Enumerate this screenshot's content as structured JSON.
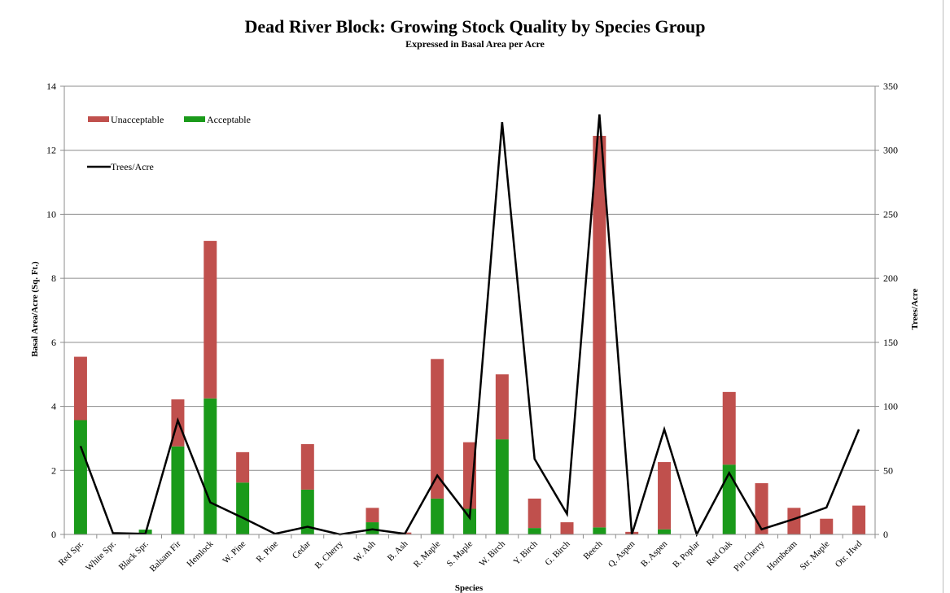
{
  "chart_data": {
    "type": "bar",
    "title": "Dead River Block: Growing Stock Quality by Species Group",
    "subtitle": "Expressed in Basal Area per Acre",
    "xlabel": "Species",
    "ylabel": "Basal Area/Acre (Sq. Ft.)",
    "y2label": "Trees/Acre",
    "ylim": [
      0,
      14
    ],
    "y2lim": [
      0,
      350
    ],
    "yticks": [
      0,
      2,
      4,
      6,
      8,
      10,
      12,
      14
    ],
    "y2ticks": [
      0,
      50,
      100,
      150,
      200,
      250,
      300,
      350
    ],
    "grid": true,
    "legend_position": "top-left",
    "categories": [
      "Red Spr.",
      "White Spr.",
      "Black Spr.",
      "Balsam Fir",
      "Hemlock",
      "W. Pine",
      "R. Pine",
      "Cedar",
      "B. Cherry",
      "W. Ash",
      "B. Ash",
      "R. Maple",
      "S. Maple",
      "W. Birch",
      "Y. Birch",
      "G. Birch",
      "Beech",
      "Q. Aspen",
      "B. Aspen",
      "B. Poplar",
      "Red Oak",
      "Pin Cherry",
      "Hornbeam",
      "Str. Maple",
      "Otr. Hwd"
    ],
    "series": [
      {
        "name": "Acceptable",
        "kind": "stacked-bar",
        "axis": "left",
        "color": "#1a9a1a",
        "values": [
          3.57,
          0,
          0.15,
          2.75,
          4.25,
          1.62,
          0,
          1.4,
          0,
          0.38,
          0,
          1.12,
          0.8,
          2.97,
          0.2,
          0,
          0.22,
          0,
          0.16,
          0,
          2.18,
          0,
          0,
          0,
          0
        ]
      },
      {
        "name": "Unacceptable",
        "kind": "stacked-bar",
        "axis": "left",
        "color": "#c0504d",
        "values": [
          1.98,
          0,
          0,
          1.47,
          4.92,
          0.95,
          0,
          1.42,
          0,
          0.45,
          0.06,
          4.36,
          2.08,
          2.03,
          0.92,
          0.38,
          12.23,
          0.08,
          2.1,
          0,
          2.27,
          1.6,
          0.83,
          0.49,
          0.9
        ]
      },
      {
        "name": "Trees/Acre",
        "kind": "line",
        "axis": "right",
        "color": "#000000",
        "values": [
          69,
          1,
          0.5,
          89,
          25,
          13,
          0.5,
          6,
          0,
          4,
          0.5,
          46,
          13,
          322,
          59,
          16,
          328,
          0,
          82,
          0,
          48,
          4,
          12,
          21,
          82
        ]
      }
    ]
  }
}
